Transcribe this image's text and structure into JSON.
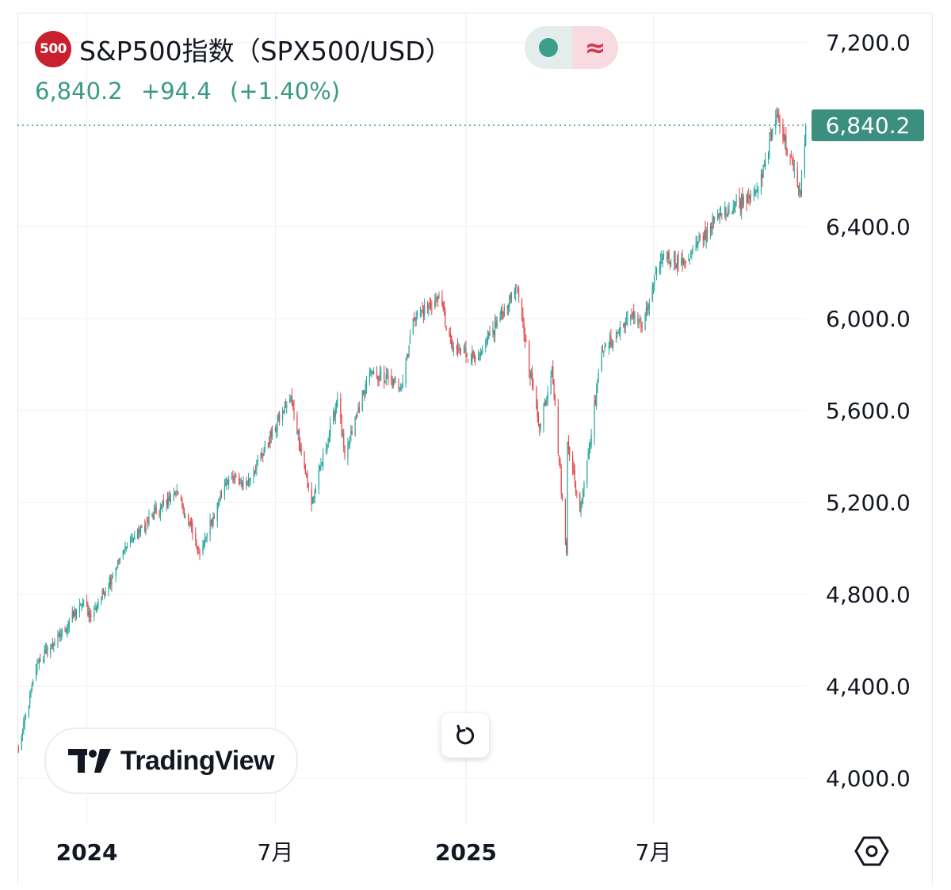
{
  "header": {
    "symbol_badge": "500",
    "title": "S&P500指数（SPX500/USD）",
    "last_price": "6,840.2",
    "change": "+94.4",
    "change_percent": "(+1.40%)"
  },
  "price_tag": "6,840.2",
  "logo": "TradingView",
  "icons": {
    "market_status": "status-dot-icon",
    "delayed": "wave-icon",
    "reset": "reset-icon",
    "settings": "settings-hex-icon",
    "logo_mark": "tradingview-logo-icon"
  },
  "colors": {
    "up": "#26a69a",
    "down": "#e0474c",
    "accent": "#3e9e8c",
    "grid": "#efefef",
    "badge": "#c8202f"
  },
  "chart_data": {
    "type": "candlestick",
    "title": "S&P500指数（SPX500/USD）",
    "xlabel": "",
    "ylabel": "",
    "y_axis_side": "right",
    "ylim": [
      3800,
      7330
    ],
    "y_ticks": [
      "4,000.0",
      "4,400.0",
      "4,800.0",
      "5,200.0",
      "5,600.0",
      "6,000.0",
      "6,400.0",
      "7,200.0"
    ],
    "x_range": [
      "2023-10-26",
      "2025-11-26"
    ],
    "x_ticks": [
      {
        "date": "2024-01-01",
        "label": "2024",
        "bold": true
      },
      {
        "date": "2024-07-01",
        "label": "7月",
        "bold": false
      },
      {
        "date": "2025-01-01",
        "label": "2025",
        "bold": true
      },
      {
        "date": "2025-07-01",
        "label": "7月",
        "bold": false
      }
    ],
    "last_value": 6840.2,
    "grid": true,
    "anchors": [
      [
        "2023-10-27",
        4120
      ],
      [
        "2023-11-14",
        4500
      ],
      [
        "2023-12-01",
        4590
      ],
      [
        "2023-12-29",
        4770
      ],
      [
        "2024-01-05",
        4700
      ],
      [
        "2024-02-09",
        5020
      ],
      [
        "2024-03-28",
        5250
      ],
      [
        "2024-04-19",
        4970
      ],
      [
        "2024-05-15",
        5300
      ],
      [
        "2024-06-03",
        5280
      ],
      [
        "2024-07-16",
        5660
      ],
      [
        "2024-08-05",
        5190
      ],
      [
        "2024-08-30",
        5650
      ],
      [
        "2024-09-06",
        5400
      ],
      [
        "2024-09-30",
        5770
      ],
      [
        "2024-10-31",
        5700
      ],
      [
        "2024-11-11",
        6000
      ],
      [
        "2024-12-06",
        6090
      ],
      [
        "2024-12-19",
        5870
      ],
      [
        "2025-01-13",
        5830
      ],
      [
        "2025-02-19",
        6140
      ],
      [
        "2025-03-13",
        5520
      ],
      [
        "2025-03-25",
        5780
      ],
      [
        "2025-04-08",
        4980
      ],
      [
        "2025-04-09",
        5460
      ],
      [
        "2025-04-21",
        5160
      ],
      [
        "2025-05-12",
        5850
      ],
      [
        "2025-06-11",
        6020
      ],
      [
        "2025-06-20",
        5960
      ],
      [
        "2025-07-10",
        6280
      ],
      [
        "2025-08-01",
        6240
      ],
      [
        "2025-09-01",
        6450
      ],
      [
        "2025-10-10",
        6560
      ],
      [
        "2025-10-28",
        6890
      ],
      [
        "2025-11-20",
        6540
      ],
      [
        "2025-11-25",
        6840
      ]
    ]
  }
}
